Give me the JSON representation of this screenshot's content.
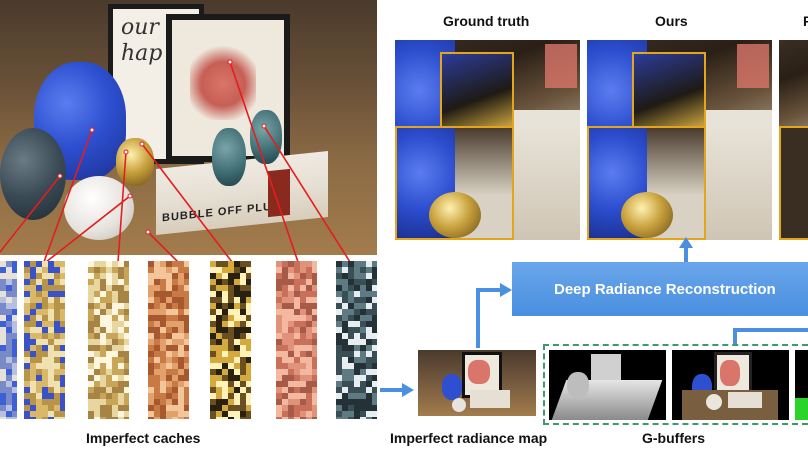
{
  "labels": {
    "ground_truth": "Ground truth",
    "ours": "Ours",
    "third_column_partial": "F",
    "reconstruction": "Deep Radiance Reconstruction",
    "imperfect_caches": "Imperfect caches",
    "imperfect_radiance_map": "Imperfect radiance map",
    "gbuffers": "G-buffers"
  },
  "scene_text": {
    "frame_back_script": "our hap",
    "book_spine": "BUBBLE OFF PLUMB"
  },
  "colors": {
    "accent_blue": "#4a8fe0",
    "panel_gold": "#e3a51c",
    "gbuffer_green": "#3f9a6a",
    "leader_red": "#e21e1e"
  },
  "cache_strips": [
    {
      "name": "cache-strip-blue",
      "palette": [
        "#3f5fd4",
        "#b8c0e0",
        "#7a8ac8",
        "#e6e2da"
      ]
    },
    {
      "name": "cache-strip-gold-blue",
      "palette": [
        "#d9b86a",
        "#b89448",
        "#f0e2b0",
        "#3a52c8"
      ]
    },
    {
      "name": "cache-strip-gold-white",
      "palette": [
        "#e8d6a0",
        "#c9a558",
        "#fff6e0",
        "#a88444"
      ]
    },
    {
      "name": "cache-strip-orange",
      "palette": [
        "#c77a44",
        "#e2a06a",
        "#a8582e",
        "#f2c69a"
      ]
    },
    {
      "name": "cache-strip-dark-gold",
      "palette": [
        "#2a2010",
        "#d4aa3c",
        "#6a5020",
        "#fff2b8"
      ]
    },
    {
      "name": "cache-strip-salmon",
      "palette": [
        "#e0927a",
        "#c8705a",
        "#f2b8a0",
        "#a85a48"
      ]
    },
    {
      "name": "cache-strip-dark-teal",
      "palette": [
        "#243238",
        "#5e7a82",
        "#3a4e56",
        "#e8eef0"
      ]
    }
  ]
}
